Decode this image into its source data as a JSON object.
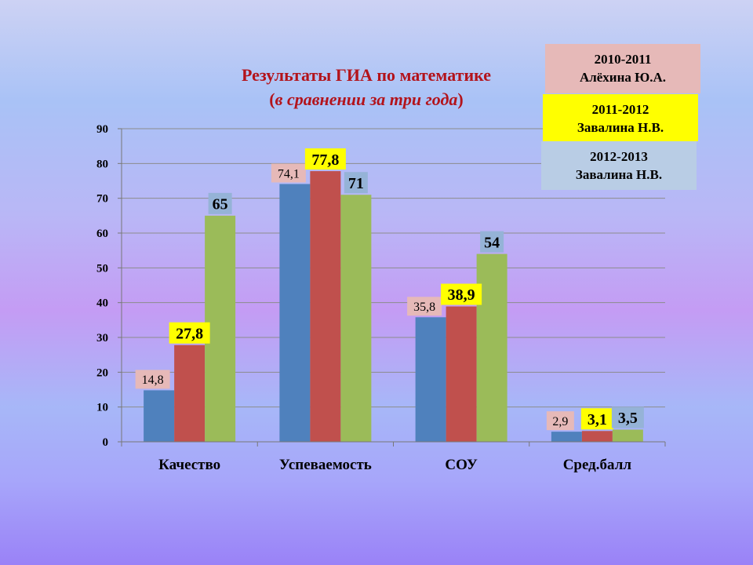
{
  "chart_data": {
    "type": "bar",
    "title": "Результаты ГИА по математике",
    "subtitle": "(в сравнении за три года)",
    "categories": [
      "Качество",
      "Успеваемость",
      "СОУ",
      "Сред.балл"
    ],
    "series": [
      {
        "name": "2010-2011 Алёхина Ю.А.",
        "name_lines": [
          "2010-2011",
          "Алёхина Ю.А."
        ],
        "color": "#4f81bd",
        "label_bg": "#e6b9b8",
        "label_bold": false,
        "values": [
          14.8,
          74.1,
          35.8,
          2.9
        ],
        "labels": [
          "14,8",
          "74,1",
          "35,8",
          "2,9"
        ]
      },
      {
        "name": "2011-2012 Завалина Н.В.",
        "name_lines": [
          "2011-2012",
          "Завалина Н.В."
        ],
        "color": "#c0504d",
        "label_bg": "#ffff00",
        "label_bold": true,
        "values": [
          27.8,
          77.8,
          38.9,
          3.1
        ],
        "labels": [
          "27,8",
          "77,8",
          "38,9",
          "3,1"
        ]
      },
      {
        "name": "2012-2013 Завалина Н.В.",
        "name_lines": [
          "2012-2013",
          "Завалина Н.В."
        ],
        "color": "#9bbb59",
        "label_bg": "#95b3d7",
        "label_bold": true,
        "values": [
          65,
          71,
          54,
          3.5
        ],
        "labels": [
          "65",
          "71",
          "54",
          "3,5"
        ]
      }
    ],
    "ylim": [
      0,
      90
    ],
    "yticks": [
      "0",
      "10",
      "20",
      "30",
      "40",
      "50",
      "60",
      "70",
      "80",
      "90"
    ],
    "grid": true,
    "legend_position": "top-right",
    "xlabel": "",
    "ylabel": ""
  },
  "colors": {
    "title": "#b3131b",
    "gridline": "#8c8c8c",
    "legend_box_1": "#e6b9b8",
    "legend_box_2": "#ffff00",
    "legend_box_3": "#b9cde5"
  }
}
